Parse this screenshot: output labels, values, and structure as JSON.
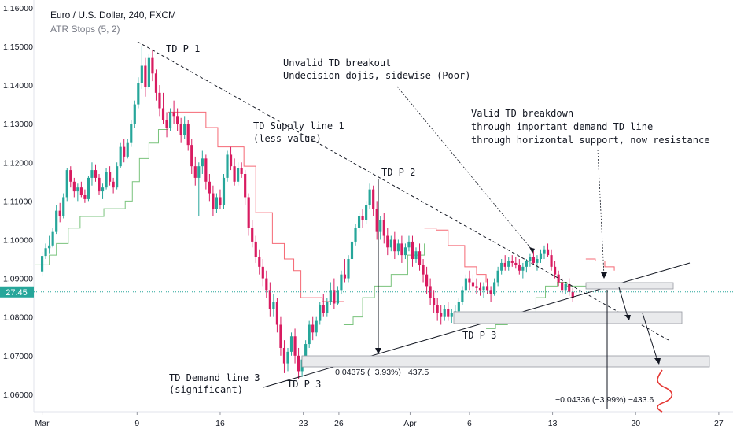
{
  "chart_data": {
    "type": "candlestick",
    "title": "Euro / U.S. Dollar, 240, FXCM",
    "indicator": "ATR Stops (5, 2)",
    "y_ticks": [
      "1.16000",
      "1.15000",
      "1.14000",
      "1.13000",
      "1.12000",
      "1.11000",
      "1.10000",
      "1.09000",
      "1.08000",
      "1.07000",
      "1.06000"
    ],
    "y_tick_values": [
      1.16,
      1.15,
      1.14,
      1.13,
      1.12,
      1.11,
      1.1,
      1.09,
      1.08,
      1.07,
      1.06
    ],
    "ylim": [
      1.0555,
      1.162
    ],
    "x_ticks": [
      "Mar",
      "9",
      "16",
      "23",
      "26",
      "Apr",
      "6",
      "13",
      "20",
      "27"
    ],
    "x_tick_days": [
      1,
      9,
      16,
      23,
      26,
      32,
      37,
      44,
      51,
      58
    ],
    "xlim": [
      0.3,
      59.2
    ],
    "current_price_label": "27:45",
    "current_price": 1.0865,
    "colors": {
      "up": "#26a69a",
      "down": "#d81b60",
      "atr_above": "#f23645",
      "atr_below": "#4caf50",
      "price_line": "#26a69a"
    },
    "atr_stops": {
      "below": [
        [
          0.4,
          1.0935
        ],
        [
          1.0,
          1.0935
        ],
        [
          1.6,
          1.096
        ],
        [
          2.2,
          1.099
        ],
        [
          3.2,
          1.103
        ],
        [
          4.2,
          1.106
        ],
        [
          5.2,
          1.106
        ],
        [
          6.2,
          1.108
        ],
        [
          7.4,
          1.108
        ],
        [
          8.0,
          1.11
        ],
        [
          8.6,
          1.115
        ],
        [
          9.2,
          1.121
        ],
        [
          10.0,
          1.125
        ],
        [
          10.8,
          1.1285
        ],
        [
          11.6,
          1.1305
        ]
      ],
      "above": [
        [
          11.6,
          1.133
        ],
        [
          13.0,
          1.133
        ],
        [
          14.8,
          1.129
        ],
        [
          15.8,
          1.124
        ],
        [
          17.2,
          1.124
        ],
        [
          18.0,
          1.119
        ],
        [
          19.0,
          1.107
        ],
        [
          20.4,
          1.099
        ],
        [
          21.4,
          1.095
        ],
        [
          22.2,
          1.092
        ],
        [
          22.8,
          1.085
        ],
        [
          24.6,
          1.084
        ],
        [
          26.4,
          1.084
        ]
      ],
      "below2": [
        [
          26.4,
          1.078
        ],
        [
          27.2,
          1.08
        ],
        [
          28.0,
          1.085
        ],
        [
          29.0,
          1.088
        ],
        [
          30.4,
          1.091
        ],
        [
          31.8,
          1.096
        ],
        [
          33.2,
          1.099
        ]
      ],
      "above2": [
        [
          33.2,
          1.103
        ],
        [
          34.2,
          1.1025
        ],
        [
          35.2,
          1.0985
        ],
        [
          36.6,
          1.093
        ],
        [
          37.6,
          1.091
        ],
        [
          38.4,
          1.089
        ]
      ],
      "below3": [
        [
          38.4,
          1.077
        ],
        [
          39.2,
          1.078
        ],
        [
          40.2,
          1.079
        ],
        [
          41.6,
          1.081
        ],
        [
          42.6,
          1.085
        ],
        [
          43.4,
          1.088
        ],
        [
          44.4,
          1.089
        ],
        [
          45.2,
          1.088
        ],
        [
          46.8,
          1.088
        ]
      ],
      "above3": [
        [
          46.8,
          1.095
        ],
        [
          47.6,
          1.0945
        ],
        [
          48.4,
          1.093
        ],
        [
          49.2,
          1.092
        ]
      ]
    },
    "candles": [
      [
        1.0,
        1.0918,
        1.0968,
        1.0905,
        1.0958
      ],
      [
        1.3,
        1.0958,
        1.099,
        1.095,
        1.0978
      ],
      [
        1.6,
        1.0978,
        1.101,
        1.0965,
        1.0985
      ],
      [
        1.9,
        1.0985,
        1.103,
        1.098,
        1.102
      ],
      [
        2.2,
        1.102,
        1.109,
        1.1015,
        1.1075
      ],
      [
        2.5,
        1.1075,
        1.1095,
        1.1045,
        1.106
      ],
      [
        2.8,
        1.106,
        1.112,
        1.1055,
        1.111
      ],
      [
        3.1,
        1.111,
        1.1185,
        1.11,
        1.118
      ],
      [
        3.4,
        1.118,
        1.119,
        1.1135,
        1.115
      ],
      [
        3.7,
        1.115,
        1.116,
        1.111,
        1.1125
      ],
      [
        4.0,
        1.1125,
        1.1145,
        1.11,
        1.1135
      ],
      [
        4.3,
        1.1135,
        1.115,
        1.111,
        1.1115
      ],
      [
        4.6,
        1.1115,
        1.113,
        1.1095,
        1.1105
      ],
      [
        4.9,
        1.1105,
        1.1165,
        1.11,
        1.116
      ],
      [
        5.2,
        1.116,
        1.12,
        1.114,
        1.118
      ],
      [
        5.5,
        1.118,
        1.1195,
        1.115,
        1.116
      ],
      [
        5.8,
        1.116,
        1.117,
        1.1115,
        1.1125
      ],
      [
        6.1,
        1.1125,
        1.1145,
        1.1105,
        1.1135
      ],
      [
        6.4,
        1.1135,
        1.1185,
        1.113,
        1.1175
      ],
      [
        6.7,
        1.1175,
        1.119,
        1.114,
        1.115
      ],
      [
        7.0,
        1.115,
        1.116,
        1.112,
        1.1135
      ],
      [
        7.3,
        1.1135,
        1.12,
        1.113,
        1.119
      ],
      [
        7.6,
        1.119,
        1.125,
        1.1185,
        1.124
      ],
      [
        7.9,
        1.124,
        1.126,
        1.12,
        1.1215
      ],
      [
        8.2,
        1.1215,
        1.126,
        1.121,
        1.125
      ],
      [
        8.5,
        1.125,
        1.131,
        1.124,
        1.13
      ],
      [
        8.8,
        1.13,
        1.136,
        1.129,
        1.135
      ],
      [
        9.1,
        1.135,
        1.142,
        1.134,
        1.1405
      ],
      [
        9.4,
        1.1405,
        1.15,
        1.139,
        1.145
      ],
      [
        9.7,
        1.145,
        1.147,
        1.137,
        1.1395
      ],
      [
        10.0,
        1.1395,
        1.148,
        1.139,
        1.147
      ],
      [
        10.3,
        1.147,
        1.149,
        1.141,
        1.143
      ],
      [
        10.6,
        1.143,
        1.144,
        1.136,
        1.138
      ],
      [
        10.9,
        1.138,
        1.14,
        1.132,
        1.134
      ],
      [
        11.2,
        1.134,
        1.138,
        1.13,
        1.131
      ],
      [
        11.5,
        1.131,
        1.133,
        1.1265,
        1.129
      ],
      [
        11.8,
        1.129,
        1.134,
        1.128,
        1.133
      ],
      [
        12.1,
        1.133,
        1.136,
        1.13,
        1.132
      ],
      [
        12.4,
        1.132,
        1.134,
        1.128,
        1.13
      ],
      [
        12.7,
        1.13,
        1.1315,
        1.125,
        1.127
      ],
      [
        13.0,
        1.127,
        1.132,
        1.126,
        1.13
      ],
      [
        13.3,
        1.13,
        1.131,
        1.123,
        1.1245
      ],
      [
        13.6,
        1.1245,
        1.126,
        1.117,
        1.119
      ],
      [
        13.9,
        1.119,
        1.1215,
        1.114,
        1.116
      ],
      [
        14.2,
        1.116,
        1.12,
        1.106,
        1.119
      ],
      [
        14.5,
        1.119,
        1.123,
        1.117,
        1.121
      ],
      [
        14.8,
        1.121,
        1.122,
        1.113,
        1.115
      ],
      [
        15.1,
        1.115,
        1.117,
        1.11,
        1.112
      ],
      [
        15.4,
        1.112,
        1.114,
        1.106,
        1.108
      ],
      [
        15.7,
        1.108,
        1.112,
        1.107,
        1.111
      ],
      [
        16.0,
        1.111,
        1.113,
        1.108,
        1.109
      ],
      [
        16.3,
        1.109,
        1.117,
        1.108,
        1.116
      ],
      [
        16.6,
        1.116,
        1.123,
        1.115,
        1.122
      ],
      [
        16.9,
        1.122,
        1.124,
        1.118,
        1.119
      ],
      [
        17.2,
        1.119,
        1.121,
        1.114,
        1.115
      ],
      [
        17.5,
        1.115,
        1.12,
        1.114,
        1.1185
      ],
      [
        17.8,
        1.1185,
        1.12,
        1.116,
        1.117
      ],
      [
        18.1,
        1.117,
        1.118,
        1.109,
        1.111
      ],
      [
        18.4,
        1.111,
        1.112,
        1.101,
        1.103
      ],
      [
        18.7,
        1.103,
        1.105,
        1.098,
        1.0995
      ],
      [
        19.0,
        1.0995,
        1.101,
        1.094,
        1.0955
      ],
      [
        19.3,
        1.0955,
        1.0975,
        1.091,
        1.093
      ],
      [
        19.6,
        1.093,
        1.095,
        1.088,
        1.09
      ],
      [
        19.9,
        1.09,
        1.092,
        1.085,
        1.087
      ],
      [
        20.2,
        1.087,
        1.089,
        1.08,
        1.082
      ],
      [
        20.5,
        1.082,
        1.086,
        1.08,
        1.084
      ],
      [
        20.8,
        1.084,
        1.085,
        1.076,
        1.078
      ],
      [
        21.1,
        1.078,
        1.08,
        1.07,
        1.072
      ],
      [
        21.4,
        1.072,
        1.074,
        1.0655,
        1.068
      ],
      [
        21.7,
        1.068,
        1.072,
        1.066,
        1.071
      ],
      [
        22.0,
        1.071,
        1.076,
        1.07,
        1.075
      ],
      [
        22.3,
        1.075,
        1.077,
        1.068,
        1.07
      ],
      [
        22.6,
        1.07,
        1.072,
        1.064,
        1.066
      ],
      [
        22.9,
        1.066,
        1.07,
        1.0645,
        1.069
      ],
      [
        23.2,
        1.069,
        1.074,
        1.068,
        1.073
      ],
      [
        23.5,
        1.073,
        1.079,
        1.072,
        1.078
      ],
      [
        23.8,
        1.078,
        1.08,
        1.074,
        1.076
      ],
      [
        24.1,
        1.076,
        1.08,
        1.075,
        1.079
      ],
      [
        24.4,
        1.079,
        1.084,
        1.078,
        1.083
      ],
      [
        24.7,
        1.083,
        1.086,
        1.08,
        1.081
      ],
      [
        25.0,
        1.081,
        1.085,
        1.08,
        1.084
      ],
      [
        25.3,
        1.084,
        1.089,
        1.083,
        1.087
      ],
      [
        25.6,
        1.087,
        1.09,
        1.082,
        1.0835
      ],
      [
        25.9,
        1.0835,
        1.088,
        1.083,
        1.087
      ],
      [
        26.2,
        1.087,
        1.092,
        1.086,
        1.091
      ],
      [
        26.5,
        1.091,
        1.095,
        1.089,
        1.09
      ],
      [
        26.8,
        1.09,
        1.096,
        1.089,
        1.095
      ],
      [
        27.1,
        1.095,
        1.101,
        1.094,
        1.0995
      ],
      [
        27.4,
        1.0995,
        1.104,
        1.0985,
        1.103
      ],
      [
        27.7,
        1.103,
        1.107,
        1.102,
        1.106
      ],
      [
        28.0,
        1.106,
        1.108,
        1.103,
        1.105
      ],
      [
        28.3,
        1.105,
        1.11,
        1.104,
        1.109
      ],
      [
        28.6,
        1.109,
        1.1145,
        1.108,
        1.113
      ],
      [
        28.9,
        1.113,
        1.114,
        1.106,
        1.108
      ],
      [
        29.2,
        1.108,
        1.11,
        1.1,
        1.102
      ],
      [
        29.5,
        1.102,
        1.106,
        1.1,
        1.105
      ],
      [
        29.8,
        1.105,
        1.107,
        1.099,
        1.101
      ],
      [
        30.1,
        1.101,
        1.103,
        1.096,
        1.098
      ],
      [
        30.4,
        1.098,
        1.101,
        1.097,
        1.1
      ],
      [
        30.7,
        1.1,
        1.102,
        1.095,
        1.097
      ],
      [
        31.0,
        1.097,
        1.1,
        1.096,
        1.099
      ],
      [
        31.3,
        1.099,
        1.101,
        1.094,
        1.096
      ],
      [
        31.6,
        1.096,
        1.099,
        1.095,
        1.098
      ],
      [
        31.9,
        1.098,
        1.101,
        1.097,
        1.0995
      ],
      [
        32.2,
        1.0995,
        1.101,
        1.093,
        1.095
      ],
      [
        32.5,
        1.095,
        1.098,
        1.094,
        1.097
      ],
      [
        32.8,
        1.097,
        1.099,
        1.092,
        1.0935
      ],
      [
        33.1,
        1.0935,
        1.095,
        1.089,
        1.091
      ],
      [
        33.4,
        1.091,
        1.093,
        1.086,
        1.088
      ],
      [
        33.7,
        1.088,
        1.09,
        1.083,
        1.085
      ],
      [
        34.0,
        1.085,
        1.087,
        1.081,
        1.083
      ],
      [
        34.3,
        1.083,
        1.085,
        1.079,
        1.081
      ],
      [
        34.6,
        1.081,
        1.083,
        1.078,
        1.08
      ],
      [
        34.9,
        1.08,
        1.083,
        1.079,
        1.082
      ],
      [
        35.2,
        1.082,
        1.084,
        1.079,
        1.08
      ],
      [
        35.5,
        1.08,
        1.082,
        1.0785,
        1.081
      ],
      [
        35.8,
        1.081,
        1.083,
        1.079,
        1.0815
      ],
      [
        36.1,
        1.0815,
        1.085,
        1.081,
        1.084
      ],
      [
        36.4,
        1.084,
        1.088,
        1.083,
        1.087
      ],
      [
        36.7,
        1.087,
        1.091,
        1.086,
        1.09
      ],
      [
        37.0,
        1.09,
        1.092,
        1.087,
        1.089
      ],
      [
        37.3,
        1.089,
        1.091,
        1.086,
        1.088
      ],
      [
        37.6,
        1.088,
        1.09,
        1.086,
        1.0875
      ],
      [
        37.9,
        1.0875,
        1.089,
        1.0855,
        1.087
      ],
      [
        38.2,
        1.087,
        1.089,
        1.085,
        1.088
      ],
      [
        38.5,
        1.088,
        1.09,
        1.086,
        1.087
      ],
      [
        38.8,
        1.087,
        1.088,
        1.084,
        1.086
      ],
      [
        39.1,
        1.086,
        1.09,
        1.0855,
        1.089
      ],
      [
        39.4,
        1.089,
        1.093,
        1.088,
        1.092
      ],
      [
        39.7,
        1.092,
        1.095,
        1.091,
        1.094
      ],
      [
        40.0,
        1.094,
        1.096,
        1.092,
        1.093
      ],
      [
        40.3,
        1.093,
        1.0955,
        1.092,
        1.0945
      ],
      [
        40.6,
        1.0945,
        1.096,
        1.093,
        1.094
      ],
      [
        40.9,
        1.094,
        1.0955,
        1.0925,
        1.0935
      ],
      [
        41.2,
        1.0935,
        1.095,
        1.091,
        1.092
      ],
      [
        41.5,
        1.092,
        1.094,
        1.09,
        1.093
      ],
      [
        41.8,
        1.093,
        1.095,
        1.0915,
        1.0945
      ],
      [
        42.1,
        1.0945,
        1.0965,
        1.093,
        1.0955
      ],
      [
        42.4,
        1.0955,
        1.097,
        1.0935,
        1.094
      ],
      [
        42.7,
        1.094,
        1.096,
        1.092,
        1.095
      ],
      [
        43.0,
        1.095,
        1.0975,
        1.094,
        1.0965
      ],
      [
        43.3,
        1.0965,
        1.0985,
        1.095,
        1.0975
      ],
      [
        43.6,
        1.0975,
        1.099,
        1.0955,
        1.096
      ],
      [
        43.9,
        1.096,
        1.0975,
        1.092,
        1.093
      ],
      [
        44.2,
        1.093,
        1.0945,
        1.09,
        1.091
      ],
      [
        44.5,
        1.091,
        1.092,
        1.088,
        1.089
      ],
      [
        44.8,
        1.089,
        1.09,
        1.086,
        1.087
      ],
      [
        45.1,
        1.087,
        1.089,
        1.086,
        1.0885
      ],
      [
        45.4,
        1.0885,
        1.09,
        1.0855,
        1.0865
      ],
      [
        45.7,
        1.0865,
        1.0875,
        1.084,
        1.085
      ]
    ],
    "annotations": {
      "td_p1": "TD P 1",
      "td_p2": "TD P 2",
      "td_p3_a": "TD P 3",
      "td_p3_b": "TD P 3",
      "supply_line_1": "TD Supply line 1",
      "supply_line_2": "(less value)",
      "unvalid_1": "Unvalid TD breakout",
      "unvalid_2": "Undecision dojis, sidewise (Poor)",
      "valid_1": "Valid TD breakdown",
      "valid_2": "through important demand TD line",
      "valid_3": "through horizontal support, now resistance",
      "demand_1": "TD Demand line  3",
      "demand_2": "(significant)",
      "measure_1": "−0.04375 (−3.93%) −437.5",
      "measure_2": "−0.04336 (−3.99%) −433.6"
    }
  }
}
